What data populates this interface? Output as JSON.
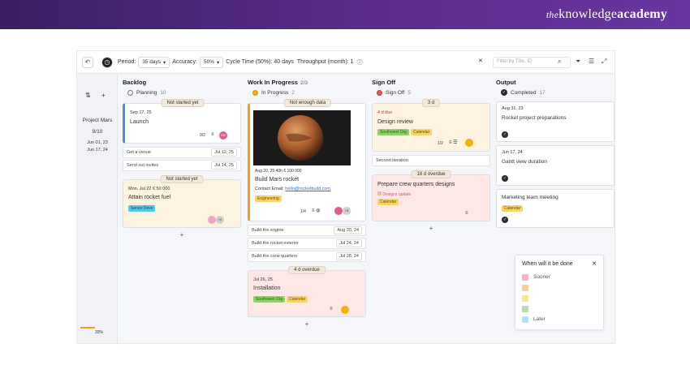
{
  "brand": {
    "pre": "the",
    "mid": "knowledge",
    "bold": "academy"
  },
  "toolbar": {
    "period_label": "Period:",
    "period_value": "35 days",
    "accuracy_label": "Accuracy:",
    "accuracy_value": "50%",
    "cycle_time": "Cycle Time (50%): 40 days",
    "throughput": "Throughput (month): 1",
    "search_placeholder": "Filter by Title, ID"
  },
  "sidebar": {
    "project": "Project Mars",
    "count": "9/10",
    "date1": "Jun 01, 23",
    "date2": "Jun 17, 24",
    "progress": "33%"
  },
  "columns": {
    "backlog": {
      "title": "Backlog"
    },
    "wip": {
      "title": "Work In Progress",
      "count": "2/3"
    },
    "signoff": {
      "title": "Sign Off"
    },
    "output": {
      "title": "Output"
    }
  },
  "backlog": {
    "group": "Planning",
    "count": "10",
    "launch": {
      "bubble": "Not started yet",
      "date": "Sep 17, 25",
      "title": "Launch",
      "meta": "0/2",
      "avatar": "DB"
    },
    "sub1": {
      "title": "Get a venue",
      "date": "Jul 12, 25"
    },
    "sub2": {
      "title": "Send out invites",
      "date": "Jul 14, 25"
    },
    "fuel": {
      "bubble": "Not started yet",
      "date": "Mon, Jul 22",
      "price": "€ 50 000",
      "title": "Attain rocket fuel",
      "tag": "Senior Devs",
      "more": "+2"
    },
    "add": "+"
  },
  "wip": {
    "group": "In Progress",
    "count": "2",
    "rocket": {
      "bubble": "Not enough data",
      "date": "Aug 20, 25",
      "hours": "40h",
      "price": "€ 100 000",
      "title": "Build Mars rocket",
      "contact_label": "Contact Email:",
      "email": "hello@rocketbuild.com",
      "tag": "Engineering",
      "meta": "1/4"
    },
    "sub1": {
      "title": "Build the engine",
      "date": "Aug 20, 24"
    },
    "sub2": {
      "title": "Build the rocket exterior",
      "date": "Jul 24, 24"
    },
    "sub3": {
      "title": "Build the crew quarters",
      "date": "Jul 28, 24"
    },
    "install": {
      "bubble": "4 d overdue",
      "date": "Jul 26, 25",
      "title": "Installation",
      "tag1": "Southwest Org",
      "tag2": "Calendar"
    },
    "add": "+"
  },
  "signoff": {
    "group": "Sign Off",
    "count": "5",
    "design": {
      "bubble": "3 d",
      "date": "4 d due",
      "title": "Design review",
      "tag1": "Southwest Org",
      "tag2": "Calendar",
      "meta": "1/2"
    },
    "sub1": {
      "title": "Second iteration"
    },
    "crew": {
      "bubble": "18 d overdue",
      "title": "Prepare crew quarters designs",
      "tag1": "Designs update",
      "tag2": "Calendar"
    },
    "add": "+"
  },
  "output": {
    "group": "Completed",
    "count": "17",
    "c1": {
      "date": "Aug 31, 23",
      "title": "Rocket project preparations"
    },
    "c2": {
      "date": "Jun 17, 24",
      "title": "Gantt view duration"
    },
    "c3": {
      "title": "Marketing team meeting",
      "tag": "Calendar"
    }
  },
  "legend": {
    "title": "When will it be done",
    "items": [
      {
        "label": "Sooner",
        "color": "#f4b6bf"
      },
      {
        "label": "",
        "color": "#f6cf9c"
      },
      {
        "label": "",
        "color": "#f7e79a"
      },
      {
        "label": "",
        "color": "#b8e0a6"
      },
      {
        "label": "Later",
        "color": "#b6e0f0"
      }
    ]
  },
  "colors": {
    "banner": "#5a2d8c",
    "accent_blue": "#4a90e2",
    "overdue_bg": "#fde8e6",
    "due_bg": "#fdf3e0"
  }
}
